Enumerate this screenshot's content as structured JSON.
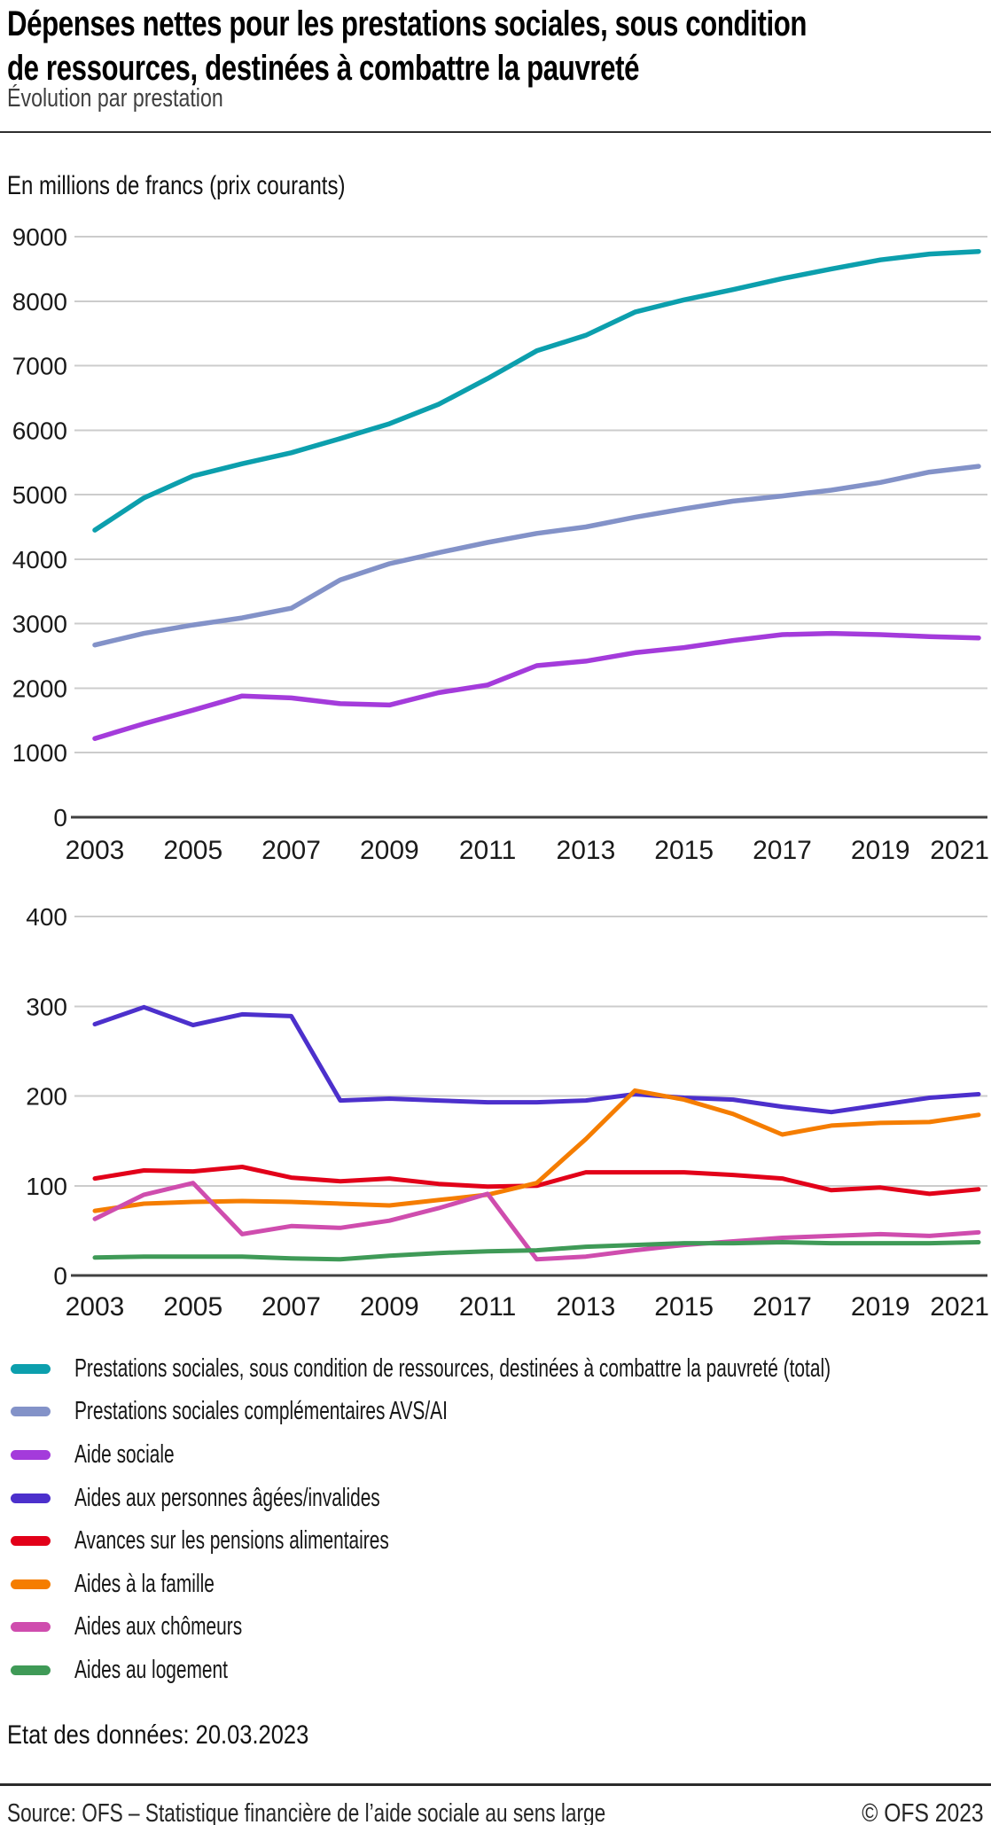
{
  "header": {
    "title_line1": "Dépenses nettes pour les prestations sociales, sous condition",
    "title_line2": "de ressources, destinées à combattre la pauvreté",
    "subtitle": "Évolution par prestation",
    "unit_label": "En millions de francs (prix courants)"
  },
  "colors": {
    "total": "#0c9fad",
    "pc_avs_ai": "#8392c8",
    "aide_sociale": "#a43bdb",
    "agees_invalides": "#4c30cc",
    "pensions_alimentaires": "#e20019",
    "famille": "#f57d00",
    "chomeurs": "#cf4dae",
    "logement": "#3f9a57",
    "gridline": "#cccccc",
    "axis": "#404040"
  },
  "chart_data": [
    {
      "type": "line",
      "title": "",
      "xlabel": "",
      "ylabel": "En millions de francs (prix courants)",
      "x": [
        2003,
        2004,
        2005,
        2006,
        2007,
        2008,
        2009,
        2010,
        2011,
        2012,
        2013,
        2014,
        2015,
        2016,
        2017,
        2018,
        2019,
        2020,
        2021
      ],
      "xticks": [
        2003,
        2005,
        2007,
        2009,
        2011,
        2013,
        2015,
        2017,
        2019,
        2021
      ],
      "ylim": [
        0,
        9000
      ],
      "yticks": [
        0,
        1000,
        2000,
        3000,
        4000,
        5000,
        6000,
        7000,
        8000,
        9000
      ],
      "grid": true,
      "series": [
        {
          "key": "total",
          "name": "Prestations sociales, sous condition de ressources, destinées à combattre la pauvreté (total)",
          "color": "#0c9fad",
          "values": [
            4450,
            4950,
            5290,
            5480,
            5650,
            5870,
            6100,
            6400,
            6800,
            7230,
            7470,
            7830,
            8020,
            8180,
            8350,
            8500,
            8640,
            8730,
            8770
          ]
        },
        {
          "key": "pc-avs-ai",
          "name": "Prestations sociales complémentaires AVS/AI",
          "color": "#8392c8",
          "values": [
            2670,
            2850,
            2980,
            3090,
            3240,
            3680,
            3930,
            4100,
            4260,
            4400,
            4500,
            4650,
            4780,
            4900,
            4980,
            5070,
            5190,
            5350,
            5440
          ]
        },
        {
          "key": "aide-sociale",
          "name": "Aide sociale",
          "color": "#a43bdb",
          "values": [
            1220,
            1450,
            1660,
            1880,
            1850,
            1760,
            1740,
            1930,
            2050,
            2350,
            2420,
            2550,
            2630,
            2740,
            2830,
            2850,
            2830,
            2800,
            2780
          ]
        }
      ]
    },
    {
      "type": "line",
      "title": "",
      "xlabel": "",
      "ylabel": "En millions de francs (prix courants)",
      "x": [
        2003,
        2004,
        2005,
        2006,
        2007,
        2008,
        2009,
        2010,
        2011,
        2012,
        2013,
        2014,
        2015,
        2016,
        2017,
        2018,
        2019,
        2020,
        2021
      ],
      "xticks": [
        2003,
        2005,
        2007,
        2009,
        2011,
        2013,
        2015,
        2017,
        2019,
        2021
      ],
      "ylim": [
        0,
        400
      ],
      "yticks": [
        0,
        100,
        200,
        300,
        400
      ],
      "grid": true,
      "series": [
        {
          "key": "agees-invalides",
          "name": "Aides aux personnes âgées/invalides",
          "color": "#4c30cc",
          "values": [
            280,
            299,
            279,
            291,
            289,
            195,
            197,
            195,
            193,
            193,
            195,
            202,
            198,
            196,
            188,
            182,
            190,
            198,
            202
          ]
        },
        {
          "key": "pensions-alimentaires",
          "name": "Avances sur les pensions alimentaires",
          "color": "#e20019",
          "values": [
            108,
            117,
            116,
            121,
            109,
            105,
            108,
            102,
            99,
            100,
            115,
            115,
            115,
            112,
            108,
            95,
            98,
            91,
            96
          ]
        },
        {
          "key": "famille",
          "name": "Aides à la famille",
          "color": "#f57d00",
          "values": [
            72,
            80,
            82,
            83,
            82,
            80,
            78,
            84,
            90,
            103,
            152,
            206,
            196,
            180,
            157,
            167,
            170,
            171,
            179
          ]
        },
        {
          "key": "chomeurs",
          "name": "Aides aux chômeurs",
          "color": "#cf4dae",
          "values": [
            63,
            90,
            103,
            46,
            55,
            53,
            61,
            75,
            91,
            18,
            21,
            28,
            34,
            38,
            42,
            44,
            46,
            44,
            48
          ]
        },
        {
          "key": "logement",
          "name": "Aides au logement",
          "color": "#3f9a57",
          "values": [
            20,
            21,
            21,
            21,
            19,
            18,
            22,
            25,
            27,
            28,
            32,
            34,
            36,
            36,
            37,
            36,
            36,
            36,
            37
          ]
        }
      ]
    }
  ],
  "legend": {
    "position": "bottom-left",
    "items": [
      {
        "label": "Prestations sociales, sous condition de ressources, destinées à combattre la pauvreté (total)",
        "color": "#0c9fad"
      },
      {
        "label": "Prestations sociales complémentaires AVS/AI",
        "color": "#8392c8"
      },
      {
        "label": "Aide sociale",
        "color": "#a43bdb"
      },
      {
        "label": "Aides aux personnes âgées/invalides",
        "color": "#4c30cc"
      },
      {
        "label": "Avances sur les pensions alimentaires",
        "color": "#e20019"
      },
      {
        "label": "Aides à la famille",
        "color": "#f57d00"
      },
      {
        "label": "Aides aux chômeurs",
        "color": "#cf4dae"
      },
      {
        "label": "Aides au logement",
        "color": "#3f9a57"
      }
    ]
  },
  "footer": {
    "status": "Etat des données: 20.03.2023",
    "source": "Source: OFS – Statistique financière de l’aide sociale au sens large",
    "copyright": "© OFS 2023"
  }
}
